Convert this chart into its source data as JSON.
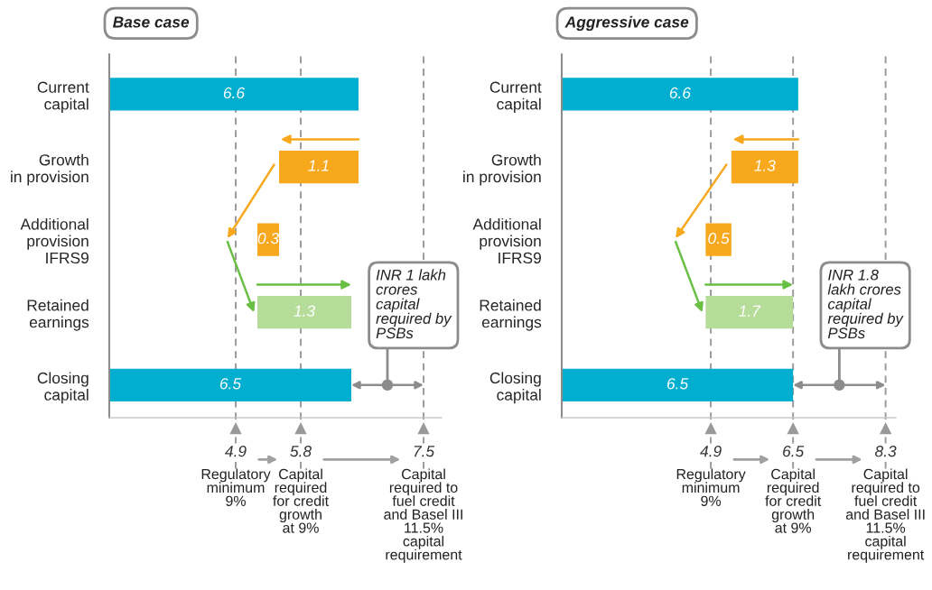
{
  "chart_data": [
    {
      "type": "bar",
      "orientation": "horizontal",
      "title": "Base case",
      "categories": [
        "Current\ncapital",
        "Growth\nin provision",
        "Additional\nprovision\nIFRS9",
        "Retained\nearnings",
        "Closing\ncapital"
      ],
      "values": [
        6.6,
        1.1,
        0.3,
        1.3,
        6.5
      ],
      "base": [
        0,
        5.5,
        5.2,
        5.2,
        0
      ],
      "colors": [
        "#00aed0",
        "#f8a81c",
        "#f8a81c",
        "#b6dc9a",
        "#00aed0"
      ],
      "data_labels": true,
      "xlim": [
        3.15,
        7.75
      ],
      "xticks": [
        4.9,
        5.8,
        7.5
      ],
      "legend": false,
      "grid": false,
      "ref_lines": [
        {
          "axis": "x",
          "value": 4.9,
          "label": "Regulatory\nminimum\n9%",
          "line_style": "dashed",
          "color": "#9a9a9a"
        },
        {
          "axis": "x",
          "value": 5.8,
          "label": "Capital\nrequired\nfor credit\ngrowth\nat 9%",
          "line_style": "dashed",
          "color": "#9a9a9a"
        },
        {
          "axis": "x",
          "value": 7.5,
          "label": "Capital\nrequired to\nfuel credit\nand Basel III\n11.5%\ncapital\nrequirement",
          "line_style": "dashed",
          "color": "#9a9a9a"
        }
      ],
      "annotations": [
        "INR 1 lakh\ncrores\ncapital\nrequired by\nPSBs"
      ]
    },
    {
      "type": "bar",
      "orientation": "horizontal",
      "title": "Aggressive case",
      "categories": [
        "Current\ncapital",
        "Growth\nin provision",
        "Additional\nprovision\nIFRS9",
        "Retained\nearnings",
        "Closing\ncapital"
      ],
      "values": [
        6.6,
        1.3,
        0.5,
        1.7,
        6.5
      ],
      "base": [
        0,
        5.3,
        4.8,
        4.8,
        0
      ],
      "colors": [
        "#00aed0",
        "#f8a81c",
        "#f8a81c",
        "#b6dc9a",
        "#00aed0"
      ],
      "data_labels": true,
      "xlim": [
        2.0,
        8.5
      ],
      "xticks": [
        4.9,
        6.5,
        8.3
      ],
      "legend": false,
      "grid": false,
      "ref_lines": [
        {
          "axis": "x",
          "value": 4.9,
          "label": "Regulatory\nminimum\n9%",
          "line_style": "dashed",
          "color": "#9a9a9a"
        },
        {
          "axis": "x",
          "value": 6.5,
          "label": "Capital\nrequired\nfor credit\ngrowth\nat 9%",
          "line_style": "dashed",
          "color": "#9a9a9a"
        },
        {
          "axis": "x",
          "value": 8.3,
          "label": "Capital\nrequired to\nfuel credit\nand Basel III\n11.5%\ncapital\nrequirement",
          "line_style": "dashed",
          "color": "#9a9a9a"
        }
      ],
      "annotations": [
        "INR 1.8\nlakh crores\ncapital\nrequired by\nPSBs"
      ]
    }
  ]
}
